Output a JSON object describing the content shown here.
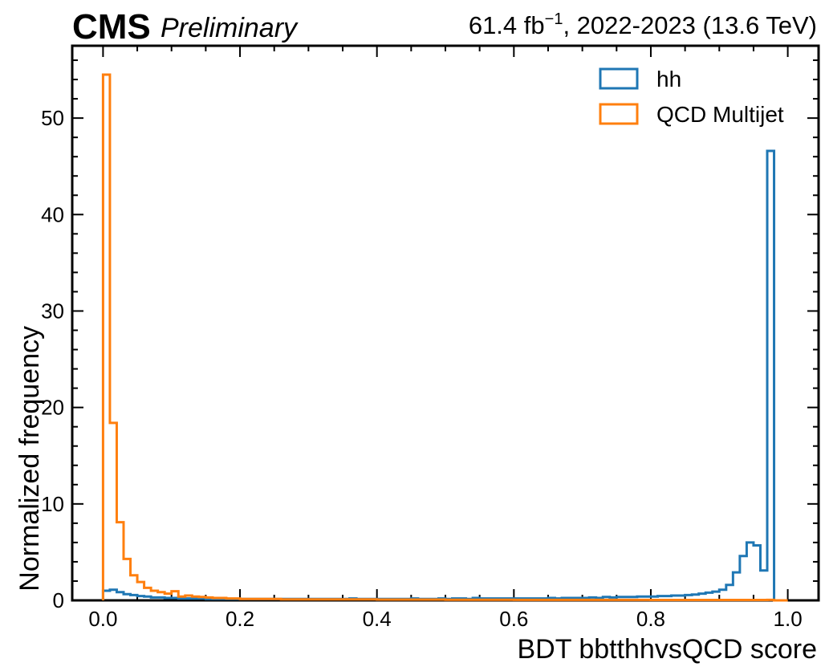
{
  "header": {
    "experiment": "CMS",
    "status": "Preliminary",
    "lumi_value": "61.4 fb",
    "lumi_exponent": "−1",
    "lumi_rest": ", 2022-2023 (13.6 TeV)"
  },
  "chart_data": {
    "type": "step",
    "title": "",
    "xlabel": "BDT bbtthhvsQCD score",
    "ylabel": "Normalized frequency",
    "xlim": [
      -0.045,
      1.045
    ],
    "ylim": [
      0,
      57.5
    ],
    "xticks": [
      "0.0",
      "0.2",
      "0.4",
      "0.6",
      "0.8",
      "1.0"
    ],
    "yticks": [
      "0",
      "10",
      "20",
      "30",
      "40",
      "50"
    ],
    "legend_position": "top-right",
    "bin_edges_start": 0.0,
    "bin_width": 0.01,
    "series": [
      {
        "name": "hh",
        "color": "#1f77b4",
        "values": [
          1.0,
          1.1,
          0.85,
          0.65,
          0.55,
          0.45,
          0.4,
          0.3,
          0.3,
          0.25,
          0.25,
          0.2,
          0.2,
          0.2,
          0.2,
          0.15,
          0.15,
          0.15,
          0.15,
          0.15,
          0.15,
          0.15,
          0.15,
          0.15,
          0.15,
          0.15,
          0.15,
          0.15,
          0.15,
          0.15,
          0.15,
          0.15,
          0.15,
          0.15,
          0.15,
          0.15,
          0.2,
          0.15,
          0.15,
          0.15,
          0.15,
          0.15,
          0.15,
          0.15,
          0.15,
          0.2,
          0.15,
          0.15,
          0.15,
          0.2,
          0.15,
          0.2,
          0.2,
          0.15,
          0.25,
          0.2,
          0.2,
          0.2,
          0.2,
          0.2,
          0.2,
          0.2,
          0.2,
          0.2,
          0.2,
          0.25,
          0.2,
          0.25,
          0.25,
          0.25,
          0.25,
          0.3,
          0.25,
          0.35,
          0.3,
          0.35,
          0.35,
          0.35,
          0.4,
          0.4,
          0.4,
          0.45,
          0.45,
          0.5,
          0.5,
          0.55,
          0.6,
          0.7,
          0.8,
          0.9,
          1.1,
          1.6,
          2.9,
          4.6,
          6.0,
          5.7,
          3.1,
          46.6,
          0.0,
          0.0
        ]
      },
      {
        "name": "QCD Multijet",
        "color": "#ff7f0e",
        "values": [
          54.5,
          18.4,
          8.1,
          4.3,
          2.6,
          1.9,
          1.3,
          1.0,
          0.85,
          0.7,
          0.95,
          0.4,
          0.5,
          0.4,
          0.35,
          0.3,
          0.25,
          0.25,
          0.2,
          0.2,
          0.15,
          0.15,
          0.15,
          0.15,
          0.15,
          0.15,
          0.1,
          0.1,
          0.1,
          0.1,
          0.1,
          0.1,
          0.1,
          0.1,
          0.1,
          0.1,
          0.1,
          0.1,
          0.1,
          0.1,
          0.08,
          0.08,
          0.08,
          0.08,
          0.08,
          0.08,
          0.08,
          0.08,
          0.08,
          0.08,
          0.06,
          0.06,
          0.06,
          0.06,
          0.06,
          0.06,
          0.06,
          0.06,
          0.06,
          0.06,
          0.05,
          0.05,
          0.05,
          0.05,
          0.05,
          0.05,
          0.05,
          0.05,
          0.05,
          0.05,
          0.05,
          0.05,
          0.05,
          0.05,
          0.05,
          0.05,
          0.05,
          0.05,
          0.05,
          0.05,
          0.04,
          0.04,
          0.04,
          0.04,
          0.04,
          0.04,
          0.04,
          0.04,
          0.04,
          0.04,
          0.04,
          0.04,
          0.04,
          0.04,
          0.04,
          0.04,
          0.04,
          0.05,
          0.0,
          0.0
        ]
      }
    ]
  }
}
